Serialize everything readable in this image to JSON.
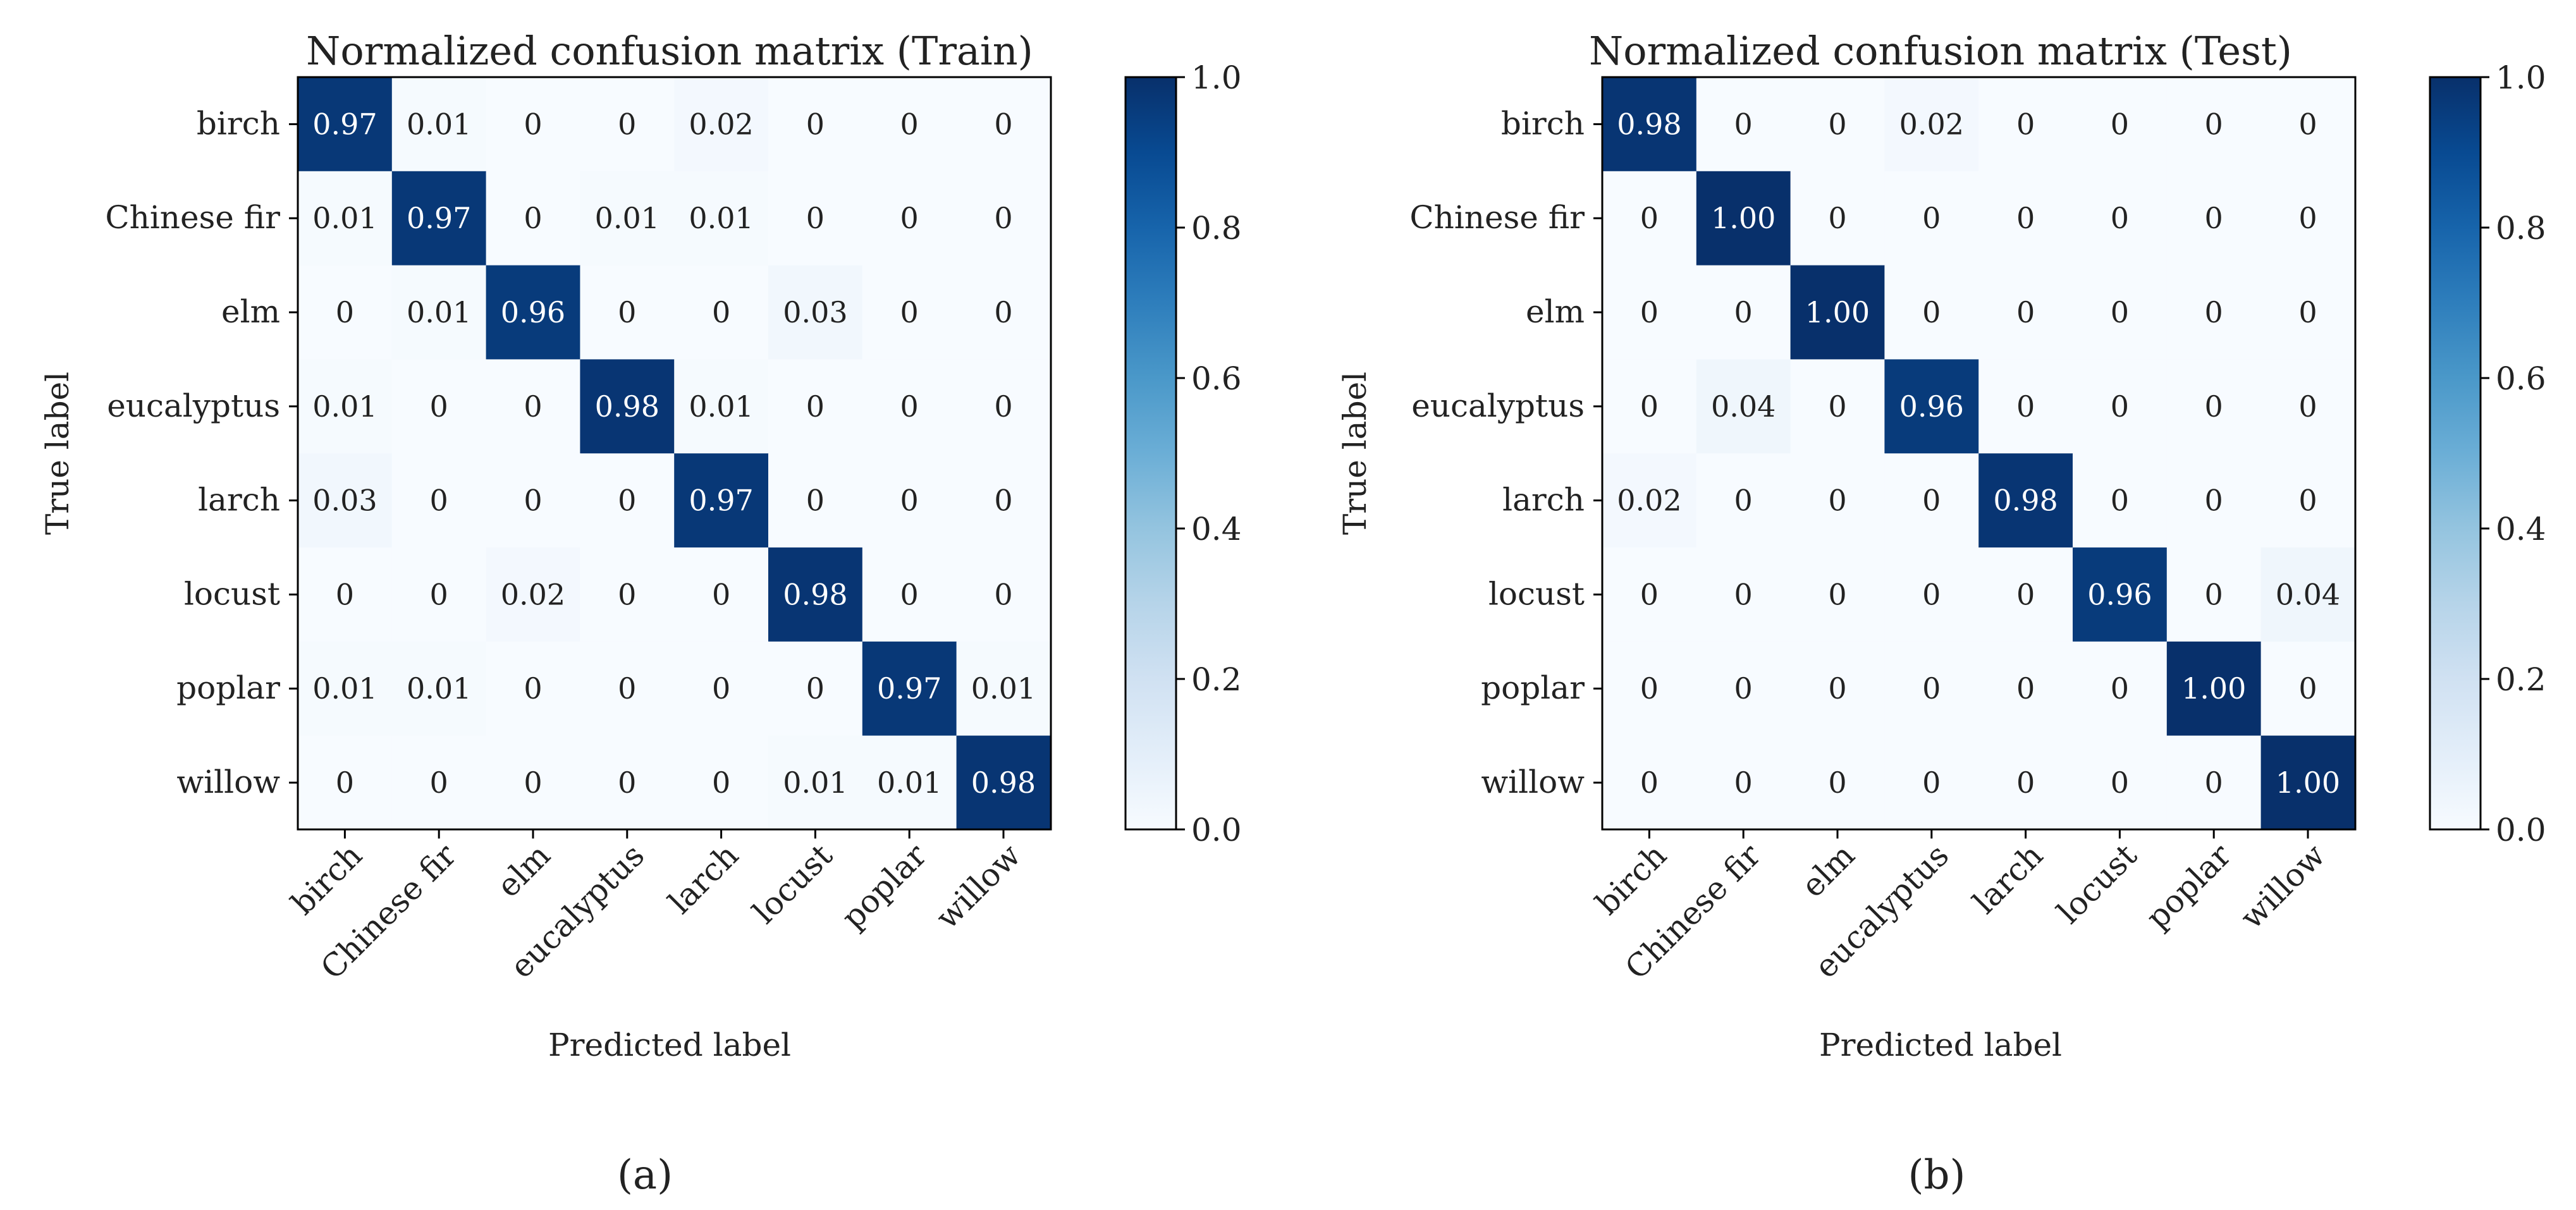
{
  "chart_data": [
    {
      "type": "heatmap",
      "title": "Normalized confusion matrix (Train)",
      "xlabel": "Predicted label",
      "ylabel": "True label",
      "caption": "(a)",
      "x_categories": [
        "birch",
        "Chinese fir",
        "elm",
        "eucalyptus",
        "larch",
        "locust",
        "poplar",
        "willow"
      ],
      "y_categories": [
        "birch",
        "Chinese fir",
        "elm",
        "eucalyptus",
        "larch",
        "locust",
        "poplar",
        "willow"
      ],
      "cell_labels": [
        [
          "0.97",
          "0.01",
          "0",
          "0",
          "0.02",
          "0",
          "0",
          "0"
        ],
        [
          "0.01",
          "0.97",
          "0",
          "0.01",
          "0.01",
          "0",
          "0",
          "0"
        ],
        [
          "0",
          "0.01",
          "0.96",
          "0",
          "0",
          "0.03",
          "0",
          "0"
        ],
        [
          "0.01",
          "0",
          "0",
          "0.98",
          "0.01",
          "0",
          "0",
          "0"
        ],
        [
          "0.03",
          "0",
          "0",
          "0",
          "0.97",
          "0",
          "0",
          "0"
        ],
        [
          "0",
          "0",
          "0.02",
          "0",
          "0",
          "0.98",
          "0",
          "0"
        ],
        [
          "0.01",
          "0.01",
          "0",
          "0",
          "0",
          "0",
          "0.97",
          "0.01"
        ],
        [
          "0",
          "0",
          "0",
          "0",
          "0",
          "0.01",
          "0.01",
          "0.98"
        ]
      ],
      "colorbar": {
        "range": [
          0.0,
          1.0
        ],
        "ticks": [
          0.0,
          0.2,
          0.4,
          0.6,
          0.8,
          1.0
        ],
        "tick_labels": [
          "0.0",
          "0.2",
          "0.4",
          "0.6",
          "0.8",
          "1.0"
        ],
        "colormap": "Blues"
      }
    },
    {
      "type": "heatmap",
      "title": "Normalized confusion matrix (Test)",
      "xlabel": "Predicted label",
      "ylabel": "True label",
      "caption": "(b)",
      "x_categories": [
        "birch",
        "Chinese fir",
        "elm",
        "eucalyptus",
        "larch",
        "locust",
        "poplar",
        "willow"
      ],
      "y_categories": [
        "birch",
        "Chinese fir",
        "elm",
        "eucalyptus",
        "larch",
        "locust",
        "poplar",
        "willow"
      ],
      "cell_labels": [
        [
          "0.98",
          "0",
          "0",
          "0.02",
          "0",
          "0",
          "0",
          "0"
        ],
        [
          "0",
          "1.00",
          "0",
          "0",
          "0",
          "0",
          "0",
          "0"
        ],
        [
          "0",
          "0",
          "1.00",
          "0",
          "0",
          "0",
          "0",
          "0"
        ],
        [
          "0",
          "0.04",
          "0",
          "0.96",
          "0",
          "0",
          "0",
          "0"
        ],
        [
          "0.02",
          "0",
          "0",
          "0",
          "0.98",
          "0",
          "0",
          "0"
        ],
        [
          "0",
          "0",
          "0",
          "0",
          "0",
          "0.96",
          "0",
          "0.04"
        ],
        [
          "0",
          "0",
          "0",
          "0",
          "0",
          "0",
          "1.00",
          "0"
        ],
        [
          "0",
          "0",
          "0",
          "0",
          "0",
          "0",
          "0",
          "1.00"
        ]
      ],
      "colorbar": {
        "range": [
          0.0,
          1.0
        ],
        "ticks": [
          0.0,
          0.2,
          0.4,
          0.6,
          0.8,
          1.0
        ],
        "tick_labels": [
          "0.0",
          "0.2",
          "0.4",
          "0.6",
          "0.8",
          "1.0"
        ],
        "colormap": "Blues"
      }
    }
  ],
  "colors": {
    "text_dark": "#222222",
    "text_light": "#ffffff",
    "axis": "#000000",
    "blues": [
      "#f7fbff",
      "#deebf7",
      "#c6dbef",
      "#9ecae1",
      "#6baed6",
      "#4292c6",
      "#2171b5",
      "#08519c",
      "#08306b"
    ]
  }
}
